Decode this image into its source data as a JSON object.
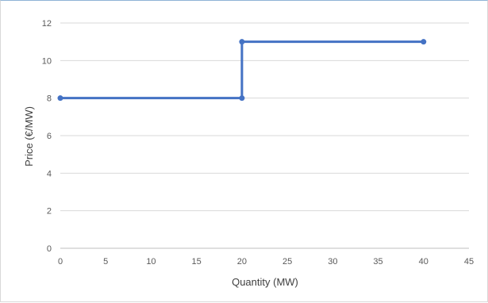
{
  "chart_data": {
    "type": "line",
    "title": "",
    "xlabel": "Quantity (MW)",
    "ylabel": "Price (€/MW)",
    "xlim": [
      0,
      45
    ],
    "ylim": [
      0,
      12
    ],
    "x_ticks": [
      0,
      5,
      10,
      15,
      20,
      25,
      30,
      35,
      40,
      45
    ],
    "y_ticks": [
      0,
      2,
      4,
      6,
      8,
      10,
      12
    ],
    "grid": "horizontal",
    "legend": "none",
    "series": [
      {
        "color": "#4472c4",
        "points": [
          {
            "x": 0,
            "y": 8
          },
          {
            "x": 20,
            "y": 8
          },
          {
            "x": 20,
            "y": 11
          },
          {
            "x": 40,
            "y": 11
          }
        ]
      }
    ]
  }
}
